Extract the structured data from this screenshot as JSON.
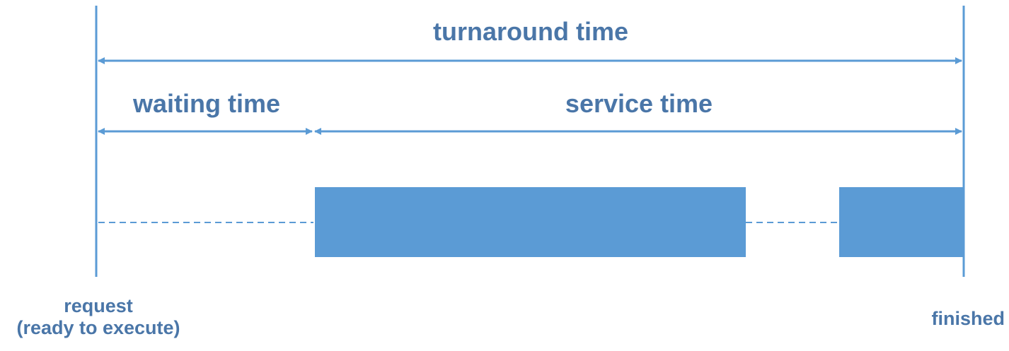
{
  "labels": {
    "turnaround": "turnaround time",
    "waiting": "waiting time",
    "service": "service time",
    "request_line1": "request",
    "request_line2": "(ready to execute)",
    "finished": "finished"
  },
  "colors": {
    "text": "#4a76a8",
    "line": "#5b9bd5",
    "block": "#5b9bd5"
  }
}
